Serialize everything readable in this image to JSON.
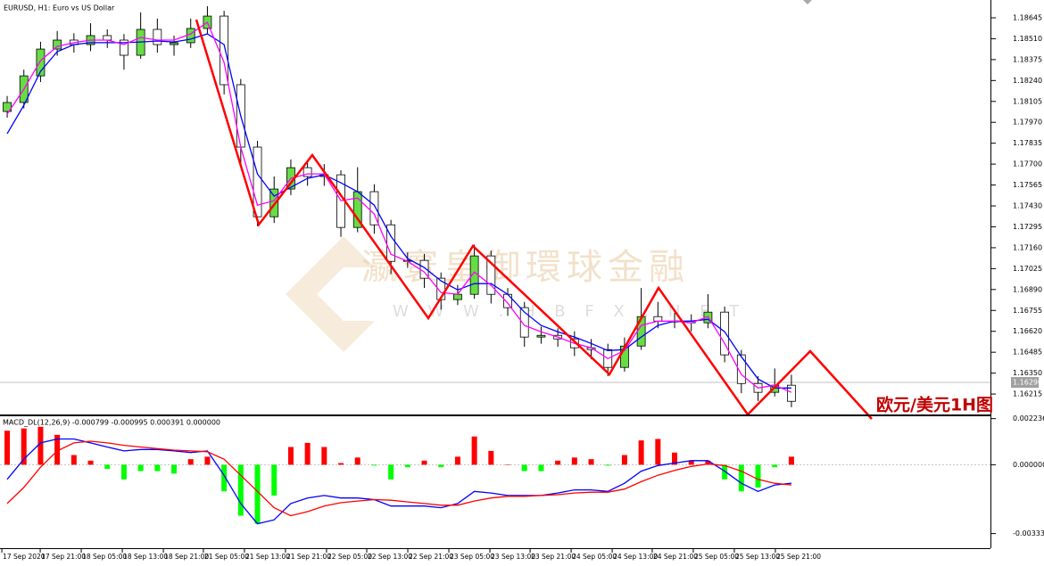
{
  "chart_data": [
    {
      "type": "candlestick",
      "title": "EURUSD, H1:  Euro vs US Dollar",
      "open": [
        1.1804,
        1.18098,
        1.1827,
        1.18443,
        1.18501,
        1.18472,
        1.1853,
        1.18501,
        1.18403,
        1.1857,
        1.18472,
        1.18484,
        1.18576,
        1.18656,
        1.18213,
        1.1781,
        1.1736,
        1.17539,
        1.17677,
        1.1762,
        1.17631,
        1.17291,
        1.17522,
        1.17308,
        1.17072,
        1.17078,
        1.16963,
        1.16825,
        1.16859,
        1.17107,
        1.16859,
        1.16773,
        1.16583,
        1.16594,
        1.16571,
        1.16514,
        1.16502,
        1.16387,
        1.16525,
        1.16715,
        1.16686,
        1.16686,
        1.16675,
        1.16744,
        1.16468,
        1.16283,
        1.16226,
        1.16272
      ],
      "high": [
        1.1814,
        1.1831,
        1.1849,
        1.1856,
        1.18545,
        1.1861,
        1.1857,
        1.1854,
        1.1868,
        1.1864,
        1.1853,
        1.1864,
        1.1872,
        1.1869,
        1.1825,
        1.1785,
        1.1762,
        1.1773,
        1.1771,
        1.177,
        1.1766,
        1.1768,
        1.1757,
        1.1734,
        1.1713,
        1.1712,
        1.17,
        1.1692,
        1.1718,
        1.1714,
        1.169,
        1.1681,
        1.1665,
        1.1664,
        1.1662,
        1.1657,
        1.1654,
        1.1658,
        1.169,
        1.1681,
        1.1674,
        1.1673,
        1.1686,
        1.1678,
        1.165,
        1.1633,
        1.1638,
        1.1634
      ],
      "low": [
        1.18,
        1.1806,
        1.1823,
        1.184,
        1.1842,
        1.1843,
        1.1845,
        1.1831,
        1.1838,
        1.1842,
        1.184,
        1.1845,
        1.1854,
        1.1815,
        1.177,
        1.173,
        1.1732,
        1.175,
        1.1756,
        1.1756,
        1.1723,
        1.1726,
        1.1725,
        1.1699,
        1.1703,
        1.169,
        1.1676,
        1.1679,
        1.1683,
        1.168,
        1.1672,
        1.1652,
        1.1654,
        1.1652,
        1.1646,
        1.1644,
        1.1633,
        1.1636,
        1.165,
        1.1664,
        1.1664,
        1.1662,
        1.1664,
        1.1642,
        1.1622,
        1.1617,
        1.162,
        1.1613
      ],
      "close": [
        1.18098,
        1.1827,
        1.18443,
        1.18501,
        1.18472,
        1.1853,
        1.18501,
        1.18403,
        1.1857,
        1.18472,
        1.18484,
        1.18576,
        1.18656,
        1.18213,
        1.1781,
        1.1736,
        1.17539,
        1.17677,
        1.1762,
        1.17631,
        1.17291,
        1.17522,
        1.17308,
        1.17072,
        1.17078,
        1.16963,
        1.16825,
        1.16859,
        1.17107,
        1.16859,
        1.16773,
        1.16583,
        1.16594,
        1.16571,
        1.16514,
        1.16502,
        1.16387,
        1.16525,
        1.16715,
        1.16686,
        1.16686,
        1.16675,
        1.16744,
        1.16468,
        1.16283,
        1.16226,
        1.16272,
        1.16168
      ],
      "up_color": "#66dd44",
      "down_color": "#ffffff",
      "lines": [
        {
          "color": "#0000ff",
          "values": [
            1.17896,
            1.1808,
            1.18299,
            1.18426,
            1.18472,
            1.18484,
            1.18484,
            1.18484,
            1.18489,
            1.18495,
            1.18489,
            1.18507,
            1.18541,
            1.18472,
            1.18011,
            1.17637,
            1.17493,
            1.1755,
            1.17608,
            1.17631,
            1.17579,
            1.17522,
            1.17435,
            1.17234,
            1.1709,
            1.17032,
            1.16946,
            1.16888,
            1.16928,
            1.16928,
            1.16859,
            1.16744,
            1.16658,
            1.16617,
            1.16583,
            1.16542,
            1.16496,
            1.16502,
            1.16583,
            1.16658,
            1.16686,
            1.16686,
            1.16698,
            1.16617,
            1.16456,
            1.16312,
            1.16254,
            1.16254
          ]
        },
        {
          "color": "#ff00ff",
          "values": [
            1.18023,
            1.18184,
            1.18368,
            1.1846,
            1.18484,
            1.18501,
            1.18501,
            1.18472,
            1.18518,
            1.18501,
            1.18501,
            1.18541,
            1.18616,
            1.18357,
            1.1781,
            1.17435,
            1.17464,
            1.17608,
            1.17637,
            1.17637,
            1.17464,
            1.17481,
            1.17378,
            1.17118,
            1.17072,
            1.17003,
            1.16871,
            1.16859,
            1.17003,
            1.16917,
            1.16802,
            1.16658,
            1.16617,
            1.16583,
            1.16542,
            1.16514,
            1.16444,
            1.16496,
            1.16658,
            1.16686,
            1.16686,
            1.16675,
            1.16715,
            1.16542,
            1.16341,
            1.16254,
            1.16272,
            1.16226
          ]
        }
      ],
      "ylim": [
        1.16083,
        1.1876
      ],
      "yticks": [
        1.18645,
        {
          "value": 1.1851,
          "label": "1.18510"
        },
        1.18375,
        {
          "value": 1.1824,
          "label": "1.18240"
        },
        1.18105,
        {
          "value": 1.1797,
          "label": "1.17970"
        },
        1.17835,
        {
          "value": 1.177,
          "label": "1.17700"
        },
        1.17565,
        {
          "value": 1.1743,
          "label": "1.17430"
        },
        1.17295,
        {
          "value": 1.1716,
          "label": "1.17160"
        },
        1.17025,
        {
          "value": 1.1689,
          "label": "1.16890"
        },
        1.16755,
        {
          "value": 1.1662,
          "label": "1.16620"
        },
        1.16485,
        {
          "value": 1.1635,
          "label": "1.16350"
        },
        1.16215
      ],
      "xlim": [
        -0.43,
        58.93
      ],
      "xticks": [
        {
          "value": -0.32,
          "label": "17 Sep 2020"
        },
        {
          "value": 1.98,
          "label": "17 Sep 21:00"
        },
        {
          "value": 4.44,
          "label": "18 Sep 05:00"
        },
        {
          "value": 6.9,
          "label": "18 Sep 13:00"
        },
        {
          "value": 9.36,
          "label": "18 Sep 21:00"
        },
        {
          "value": 11.76,
          "label": "21 Sep 05:00"
        },
        {
          "value": 14.22,
          "label": "21 Sep 13:00"
        },
        {
          "value": 16.68,
          "label": "21 Sep 21:00"
        },
        {
          "value": 19.14,
          "label": "22 Sep 05:00"
        },
        {
          "value": 21.55,
          "label": "22 Sep 13:00"
        },
        {
          "value": 24.01,
          "label": "22 Sep 21:00"
        },
        {
          "value": 26.47,
          "label": "23 Sep 05:00"
        },
        {
          "value": 28.93,
          "label": "23 Sep 13:00"
        },
        {
          "value": 31.34,
          "label": "23 Sep 21:00"
        },
        {
          "value": 33.8,
          "label": "24 Sep 05:00"
        },
        {
          "value": 36.26,
          "label": "24 Sep 13:00"
        },
        {
          "value": 38.66,
          "label": "24 Sep 21:00"
        },
        {
          "value": 41.12,
          "label": "25 Sep 05:00"
        },
        {
          "value": 43.58,
          "label": "25 Sep 13:00"
        },
        {
          "value": 46.04,
          "label": "25 Sep 21:00"
        }
      ],
      "current_price": {
        "value": 1.1629,
        "label": "1.16290"
      },
      "annotation": "欧元/美元1H图",
      "watermark": [
        "瀛寰皇御環球金融",
        "W W W . H B F X . N E T"
      ]
    },
    {
      "type": "macd",
      "title": "MACD_DL(12,26,9) -0.000799 -0.000995 0.000391 0.000000",
      "histogram": [
        0.00165,
        0.00176,
        0.00184,
        0.00145,
        0.00047,
        0.0002,
        -0.0002,
        -0.00071,
        -0.00031,
        -0.00031,
        -0.00043,
        0.00027,
        0.00039,
        -0.00129,
        -0.00247,
        -0.00286,
        -0.00149,
        0.00086,
        0.00106,
        0.00086,
        8e-05,
        0.00035,
        -4e-05,
        -0.00071,
        -0.00012,
        0.0002,
        -0.00012,
        0.00039,
        0.00137,
        0.00067,
        2e-05,
        -0.00031,
        -0.00031,
        0.0002,
        0.00035,
        0.00027,
        -4e-05,
        0.00047,
        0.00118,
        0.00125,
        0.00059,
        0.0002,
        0.0002,
        -0.00071,
        -0.00129,
        -0.0011,
        -0.00012,
        0.00039
      ],
      "positive_color": "#ff0000",
      "negative_color": "#00ff00",
      "lines": [
        {
          "color": "#0000ff",
          "values": [
            -0.00071,
            0.00027,
            0.00106,
            0.00125,
            0.00125,
            0.00106,
            0.00086,
            0.00067,
            0.00074,
            0.00074,
            0.00067,
            0.00059,
            0.00067,
            -0.00051,
            -0.00188,
            -0.00286,
            -0.00267,
            -0.00188,
            -0.00161,
            -0.00149,
            -0.00161,
            -0.00161,
            -0.00169,
            -0.002,
            -0.002,
            -0.002,
            -0.00208,
            -0.00188,
            -0.00129,
            -0.00137,
            -0.00149,
            -0.00149,
            -0.00149,
            -0.00137,
            -0.00122,
            -0.00122,
            -0.00129,
            -0.0009,
            -0.00031,
            -4e-05,
            8e-05,
            0.0002,
            0.0002,
            -0.00031,
            -0.0009,
            -0.00129,
            -0.00098,
            -0.0009
          ]
        },
        {
          "color": "#ff0000",
          "values": [
            -0.00188,
            -0.0011,
            -0.00012,
            0.00067,
            0.00106,
            0.00114,
            0.00106,
            0.00094,
            0.00086,
            0.00078,
            0.00071,
            0.00067,
            0.00063,
            0.00027,
            -0.00051,
            -0.00129,
            -0.00208,
            -0.00247,
            -0.00227,
            -0.002,
            -0.00184,
            -0.00176,
            -0.00169,
            -0.00172,
            -0.0018,
            -0.00188,
            -0.00196,
            -0.00196,
            -0.00176,
            -0.00161,
            -0.00153,
            -0.00153,
            -0.00149,
            -0.00145,
            -0.00137,
            -0.00133,
            -0.00133,
            -0.00118,
            -0.00082,
            -0.00051,
            -0.00027,
            -8e-05,
            4e-05,
            -4e-05,
            -0.00031,
            -0.00071,
            -0.0009,
            -0.00098
          ]
        }
      ],
      "ylim": [
        -0.004,
        0.00235
      ],
      "yticks": [
        0.002236,
        {
          "value": 0,
          "label": "0.000000"
        },
        -0.003335
      ]
    }
  ]
}
